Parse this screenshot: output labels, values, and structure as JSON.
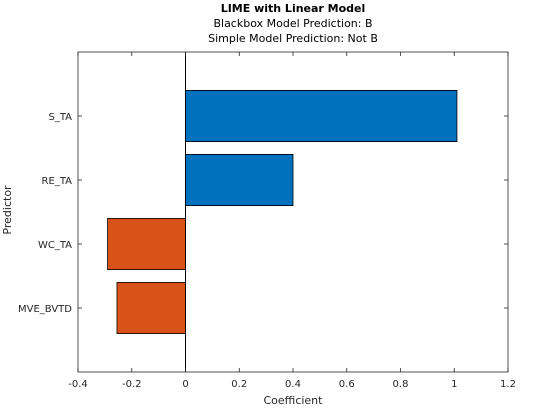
{
  "chart_data": {
    "type": "bar",
    "orientation": "horizontal",
    "title": "LIME with Linear Model",
    "subtitle_lines": [
      "Blackbox Model Prediction: B",
      "Simple Model Prediction: Not B"
    ],
    "xlabel": "Coefficient",
    "ylabel": "Predictor",
    "xlim": [
      -0.4,
      1.2
    ],
    "x_ticks": [
      -0.4,
      -0.2,
      0,
      0.2,
      0.4,
      0.6,
      0.8,
      1,
      1.2
    ],
    "x_tick_labels": [
      "-0.4",
      "-0.2",
      "0",
      "0.2",
      "0.4",
      "0.6",
      "0.8",
      "1",
      "1.2"
    ],
    "categories": [
      "S_TA",
      "RE_TA",
      "WC_TA",
      "MVE_BVTD"
    ],
    "values": [
      1.01,
      0.4,
      -0.29,
      -0.255
    ],
    "colors": {
      "positive": "#0072BD",
      "negative": "#D95319",
      "edge": "#000000"
    },
    "grid": false,
    "legend": "none"
  }
}
